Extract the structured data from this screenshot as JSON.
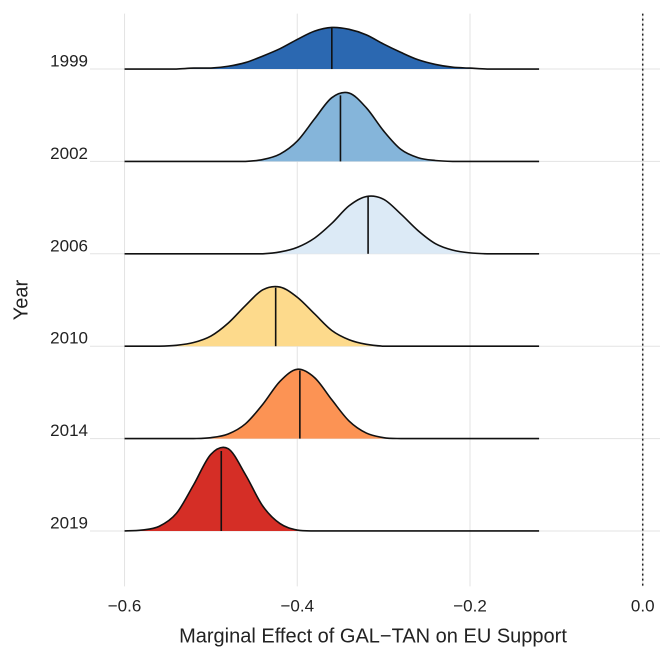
{
  "chart_data": {
    "type": "ridgeline",
    "x_label": "Marginal Effect of GAL−TAN on EU Support",
    "y_label": "Year",
    "categories": [
      "1999",
      "2002",
      "2006",
      "2010",
      "2014",
      "2019"
    ],
    "x": [
      -0.6,
      -0.58,
      -0.56,
      -0.54,
      -0.52,
      -0.5,
      -0.48,
      -0.46,
      -0.44,
      -0.42,
      -0.4,
      -0.38,
      -0.36,
      -0.34,
      -0.32,
      -0.3,
      -0.28,
      -0.26,
      -0.24,
      -0.22,
      -0.2,
      -0.18,
      -0.16,
      -0.14,
      -0.12
    ],
    "series": [
      {
        "name": "1999",
        "color": "#2b68b1",
        "median": -0.36,
        "values": [
          0,
          0,
          0,
          0,
          0.01,
          0.01,
          0.03,
          0.07,
          0.14,
          0.22,
          0.32,
          0.41,
          0.45,
          0.43,
          0.37,
          0.27,
          0.18,
          0.1,
          0.05,
          0.02,
          0.01,
          0,
          0,
          0,
          0
        ]
      },
      {
        "name": "2002",
        "color": "#85b5da",
        "median": -0.35,
        "values": [
          0,
          0,
          0,
          0,
          0,
          0,
          0,
          0,
          0.02,
          0.08,
          0.22,
          0.46,
          0.69,
          0.74,
          0.58,
          0.33,
          0.13,
          0.04,
          0.01,
          0,
          0,
          0,
          0,
          0,
          0
        ]
      },
      {
        "name": "2006",
        "color": "#dceaf6",
        "median": -0.318,
        "values": [
          0,
          0,
          0,
          0,
          0,
          0,
          0,
          0,
          0,
          0.02,
          0.07,
          0.17,
          0.33,
          0.52,
          0.62,
          0.59,
          0.43,
          0.25,
          0.11,
          0.04,
          0.01,
          0,
          0,
          0,
          0
        ]
      },
      {
        "name": "2010",
        "color": "#fdda8c",
        "median": -0.425,
        "values": [
          0,
          0,
          0,
          0.01,
          0.04,
          0.11,
          0.25,
          0.44,
          0.61,
          0.64,
          0.53,
          0.35,
          0.17,
          0.07,
          0.02,
          0,
          0,
          0,
          0,
          0,
          0,
          0,
          0,
          0,
          0
        ]
      },
      {
        "name": "2014",
        "color": "#fc9354",
        "median": -0.397,
        "values": [
          0,
          0,
          0,
          0,
          0,
          0.01,
          0.05,
          0.16,
          0.37,
          0.62,
          0.75,
          0.66,
          0.42,
          0.19,
          0.06,
          0.01,
          0,
          0,
          0,
          0,
          0,
          0,
          0,
          0,
          0
        ]
      },
      {
        "name": "2019",
        "color": "#d52e26",
        "median": -0.488,
        "values": [
          0,
          0.01,
          0.05,
          0.19,
          0.5,
          0.83,
          0.89,
          0.61,
          0.27,
          0.08,
          0.01,
          0,
          0,
          0,
          0,
          0,
          0,
          0,
          0,
          0,
          0,
          0,
          0,
          0,
          0
        ]
      }
    ],
    "xlim": [
      -0.64,
      0.02
    ],
    "xticks": [
      {
        "value": -0.6,
        "label": "−0.6"
      },
      {
        "value": -0.4,
        "label": "−0.4"
      },
      {
        "value": -0.2,
        "label": "−0.2"
      },
      {
        "value": 0,
        "label": "0.0"
      }
    ],
    "ylim": [
      -0.6,
      5.6
    ],
    "reference_line": 0,
    "grid": true
  }
}
